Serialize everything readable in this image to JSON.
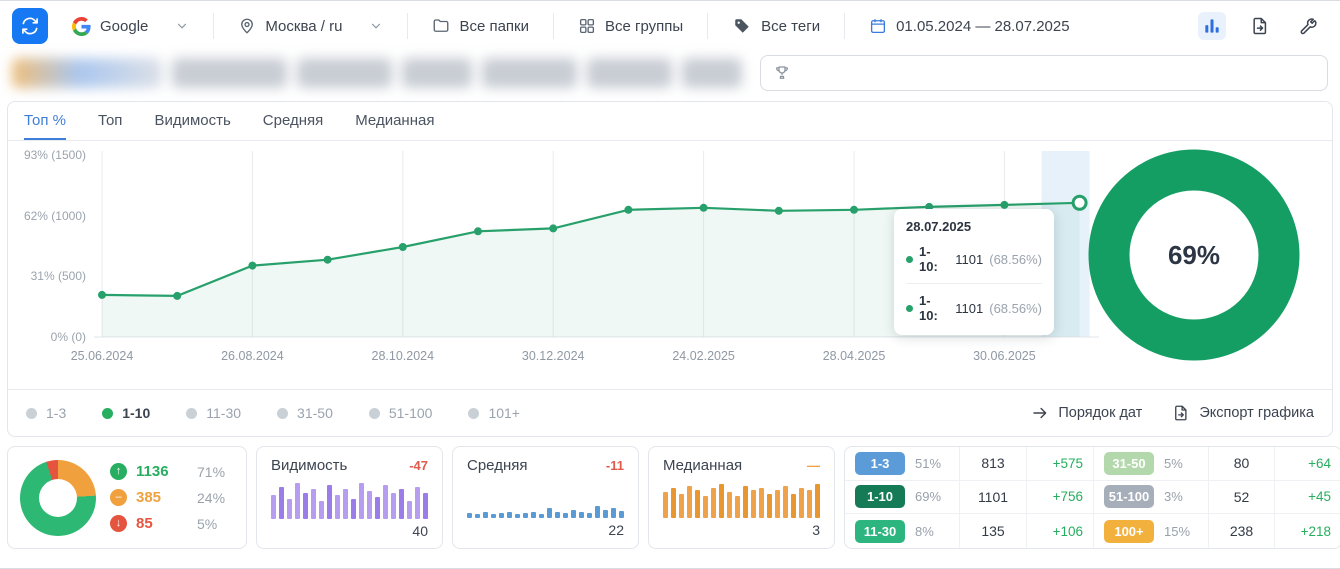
{
  "toolbar": {
    "search_engine": "Google",
    "region": "Москва / ru",
    "folders": "Все папки",
    "groups": "Все группы",
    "tags": "Все теги",
    "date_range": "01.05.2024 — 28.07.2025"
  },
  "search": {
    "value": "",
    "placeholder": ""
  },
  "tabs": [
    {
      "label": "Топ %",
      "active": true
    },
    {
      "label": "Топ",
      "active": false
    },
    {
      "label": "Видимость",
      "active": false
    },
    {
      "label": "Средняя",
      "active": false
    },
    {
      "label": "Медианная",
      "active": false
    }
  ],
  "chart_data": {
    "type": "line",
    "series_name": "1-10",
    "x_ticks": [
      "25.06.2024",
      "26.08.2024",
      "28.10.2024",
      "30.12.2024",
      "24.02.2025",
      "28.04.2025",
      "30.06.2025"
    ],
    "y_ticks": [
      "93% (1500)",
      "62% (1000)",
      "31% (500)",
      "0% (0)"
    ],
    "y_tick_values": [
      93,
      62,
      31,
      0
    ],
    "ylim": [
      0,
      93
    ],
    "values": [
      21.5,
      21,
      36.5,
      39.5,
      46,
      54,
      55.5,
      65,
      66,
      64.5,
      65,
      66.5,
      67.5,
      68.56
    ],
    "last_point_date": "28.07.2025",
    "line_color": "#27a06b",
    "area_color": "#2aa070",
    "highlight_band_color": "#dcebf8",
    "grid": true,
    "legend_position": "bottom"
  },
  "tooltip": {
    "date": "28.07.2025",
    "rows": [
      {
        "label": "1-10:",
        "value": "1101",
        "percent": "(68.56%)"
      },
      {
        "label": "1-10:",
        "value": "1101",
        "percent": "(68.56%)"
      }
    ]
  },
  "donut": {
    "value": "69%",
    "color": "#149e63"
  },
  "legend": [
    {
      "label": "1-3",
      "active": false
    },
    {
      "label": "1-10",
      "active": true
    },
    {
      "label": "11-30",
      "active": false
    },
    {
      "label": "31-50",
      "active": false
    },
    {
      "label": "51-100",
      "active": false
    },
    {
      "label": "101+",
      "active": false
    }
  ],
  "chart_actions": {
    "date_order": "Порядок дат",
    "export": "Экспорт графика"
  },
  "summary": {
    "donut": {
      "up_pct": 71,
      "same_pct": 24,
      "down_pct": 5,
      "up_color": "#2db973",
      "same_color": "#f0a13e",
      "down_color": "#e4543f"
    },
    "rows": [
      {
        "dir": "up",
        "value": "1136",
        "pct": "71%",
        "color": "#27ae60"
      },
      {
        "dir": "same",
        "value": "385",
        "pct": "24%",
        "color": "#f0a13e"
      },
      {
        "dir": "down",
        "value": "85",
        "pct": "5%",
        "color": "#e4543f"
      }
    ]
  },
  "cards": [
    {
      "title": "Видимость",
      "change": "-47",
      "change_color": "#e05a4e",
      "value": "40",
      "bar_color": "#b79df0",
      "bar_color_alt": "#9b7ce8",
      "spark": [
        24,
        32,
        20,
        36,
        26,
        30,
        18,
        34,
        24,
        30,
        20,
        36,
        28,
        22,
        34,
        26,
        30,
        18,
        32,
        26
      ]
    },
    {
      "title": "Средняя",
      "change": "-11",
      "change_color": "#e05a4e",
      "value": "22",
      "bar_color": "#5b9bd5",
      "bar_color_alt": "#5b9bd5",
      "spark": [
        5,
        4,
        6,
        4,
        5,
        6,
        4,
        5,
        6,
        4,
        10,
        6,
        5,
        8,
        6,
        5,
        12,
        8,
        10,
        7
      ]
    },
    {
      "title": "Медианная",
      "change": "—",
      "change_color": "#f0a13e",
      "value": "3",
      "bar_color": "#f0a24a",
      "bar_color_alt": "#e8962f",
      "spark": [
        26,
        30,
        24,
        32,
        28,
        22,
        30,
        34,
        26,
        22,
        32,
        28,
        30,
        24,
        28,
        32,
        24,
        30,
        28,
        34
      ]
    }
  ],
  "stats": [
    {
      "badge": "1-3",
      "badge_color": "#5b9bd8",
      "pct": "51%",
      "value": "813",
      "change": "+575"
    },
    {
      "badge": "1-10",
      "badge_color": "#157a56",
      "pct": "69%",
      "value": "1101",
      "change": "+756"
    },
    {
      "badge": "11-30",
      "badge_color": "#2cb57e",
      "pct": "8%",
      "value": "135",
      "change": "+106"
    },
    {
      "badge": "31-50",
      "badge_color": "#b2d8ab",
      "pct": "5%",
      "value": "80",
      "change": "+64"
    },
    {
      "badge": "51-100",
      "badge_color": "#a5aeb9",
      "pct": "3%",
      "value": "52",
      "change": "+45"
    },
    {
      "badge": "100+",
      "badge_color": "#f2b13c",
      "pct": "15%",
      "value": "238",
      "change": "+218"
    }
  ],
  "chips_widths": [
    150,
    115,
    95,
    70,
    95,
    85,
    60
  ]
}
